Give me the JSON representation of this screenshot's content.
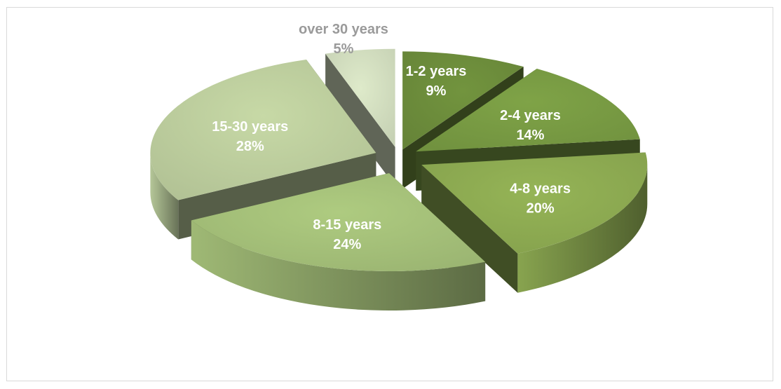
{
  "chart_data": {
    "type": "pie",
    "style": "3d-exploded",
    "title": "",
    "categories": [
      "1-2 years",
      "2-4 years",
      "4-8 years",
      "8-15 years",
      "15-30 years",
      "over 30 years"
    ],
    "values": [
      9,
      14,
      20,
      24,
      28,
      5
    ],
    "data_labels": [
      "9%",
      "14%",
      "20%",
      "24%",
      "28%",
      "5%"
    ],
    "colors": [
      "#6e8e3c",
      "#7a9d44",
      "#8fad53",
      "#a7c37b",
      "#bfd1a0",
      "#d5e1c2"
    ],
    "label_colors": [
      "#ffffff",
      "#ffffff",
      "#ffffff",
      "#ffffff",
      "#ffffff",
      "#9a9a9a"
    ],
    "legend": "none"
  }
}
